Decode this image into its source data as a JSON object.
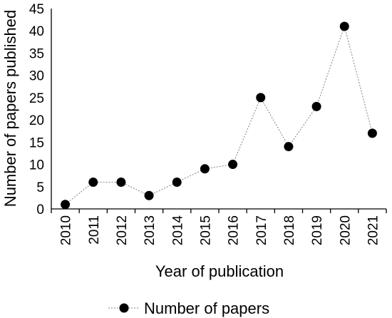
{
  "chart_data": {
    "type": "line",
    "title": "",
    "xlabel": "Year of publication",
    "ylabel": "Number of papers published",
    "categories": [
      "2010",
      "2011",
      "2012",
      "2013",
      "2014",
      "2015",
      "2016",
      "2017",
      "2018",
      "2019",
      "2020",
      "2021"
    ],
    "series": [
      {
        "name": "Number of papers",
        "values": [
          1,
          6,
          6,
          3,
          6,
          9,
          10,
          25,
          14,
          23,
          41,
          17
        ]
      }
    ],
    "ylim": [
      0,
      45
    ],
    "yticks": [
      "0",
      "5",
      "10",
      "15",
      "20",
      "25",
      "30",
      "35",
      "40",
      "45"
    ],
    "grid": false,
    "legend_position": "bottom",
    "colors": {
      "marker": "#000000",
      "line": "#808080"
    }
  }
}
